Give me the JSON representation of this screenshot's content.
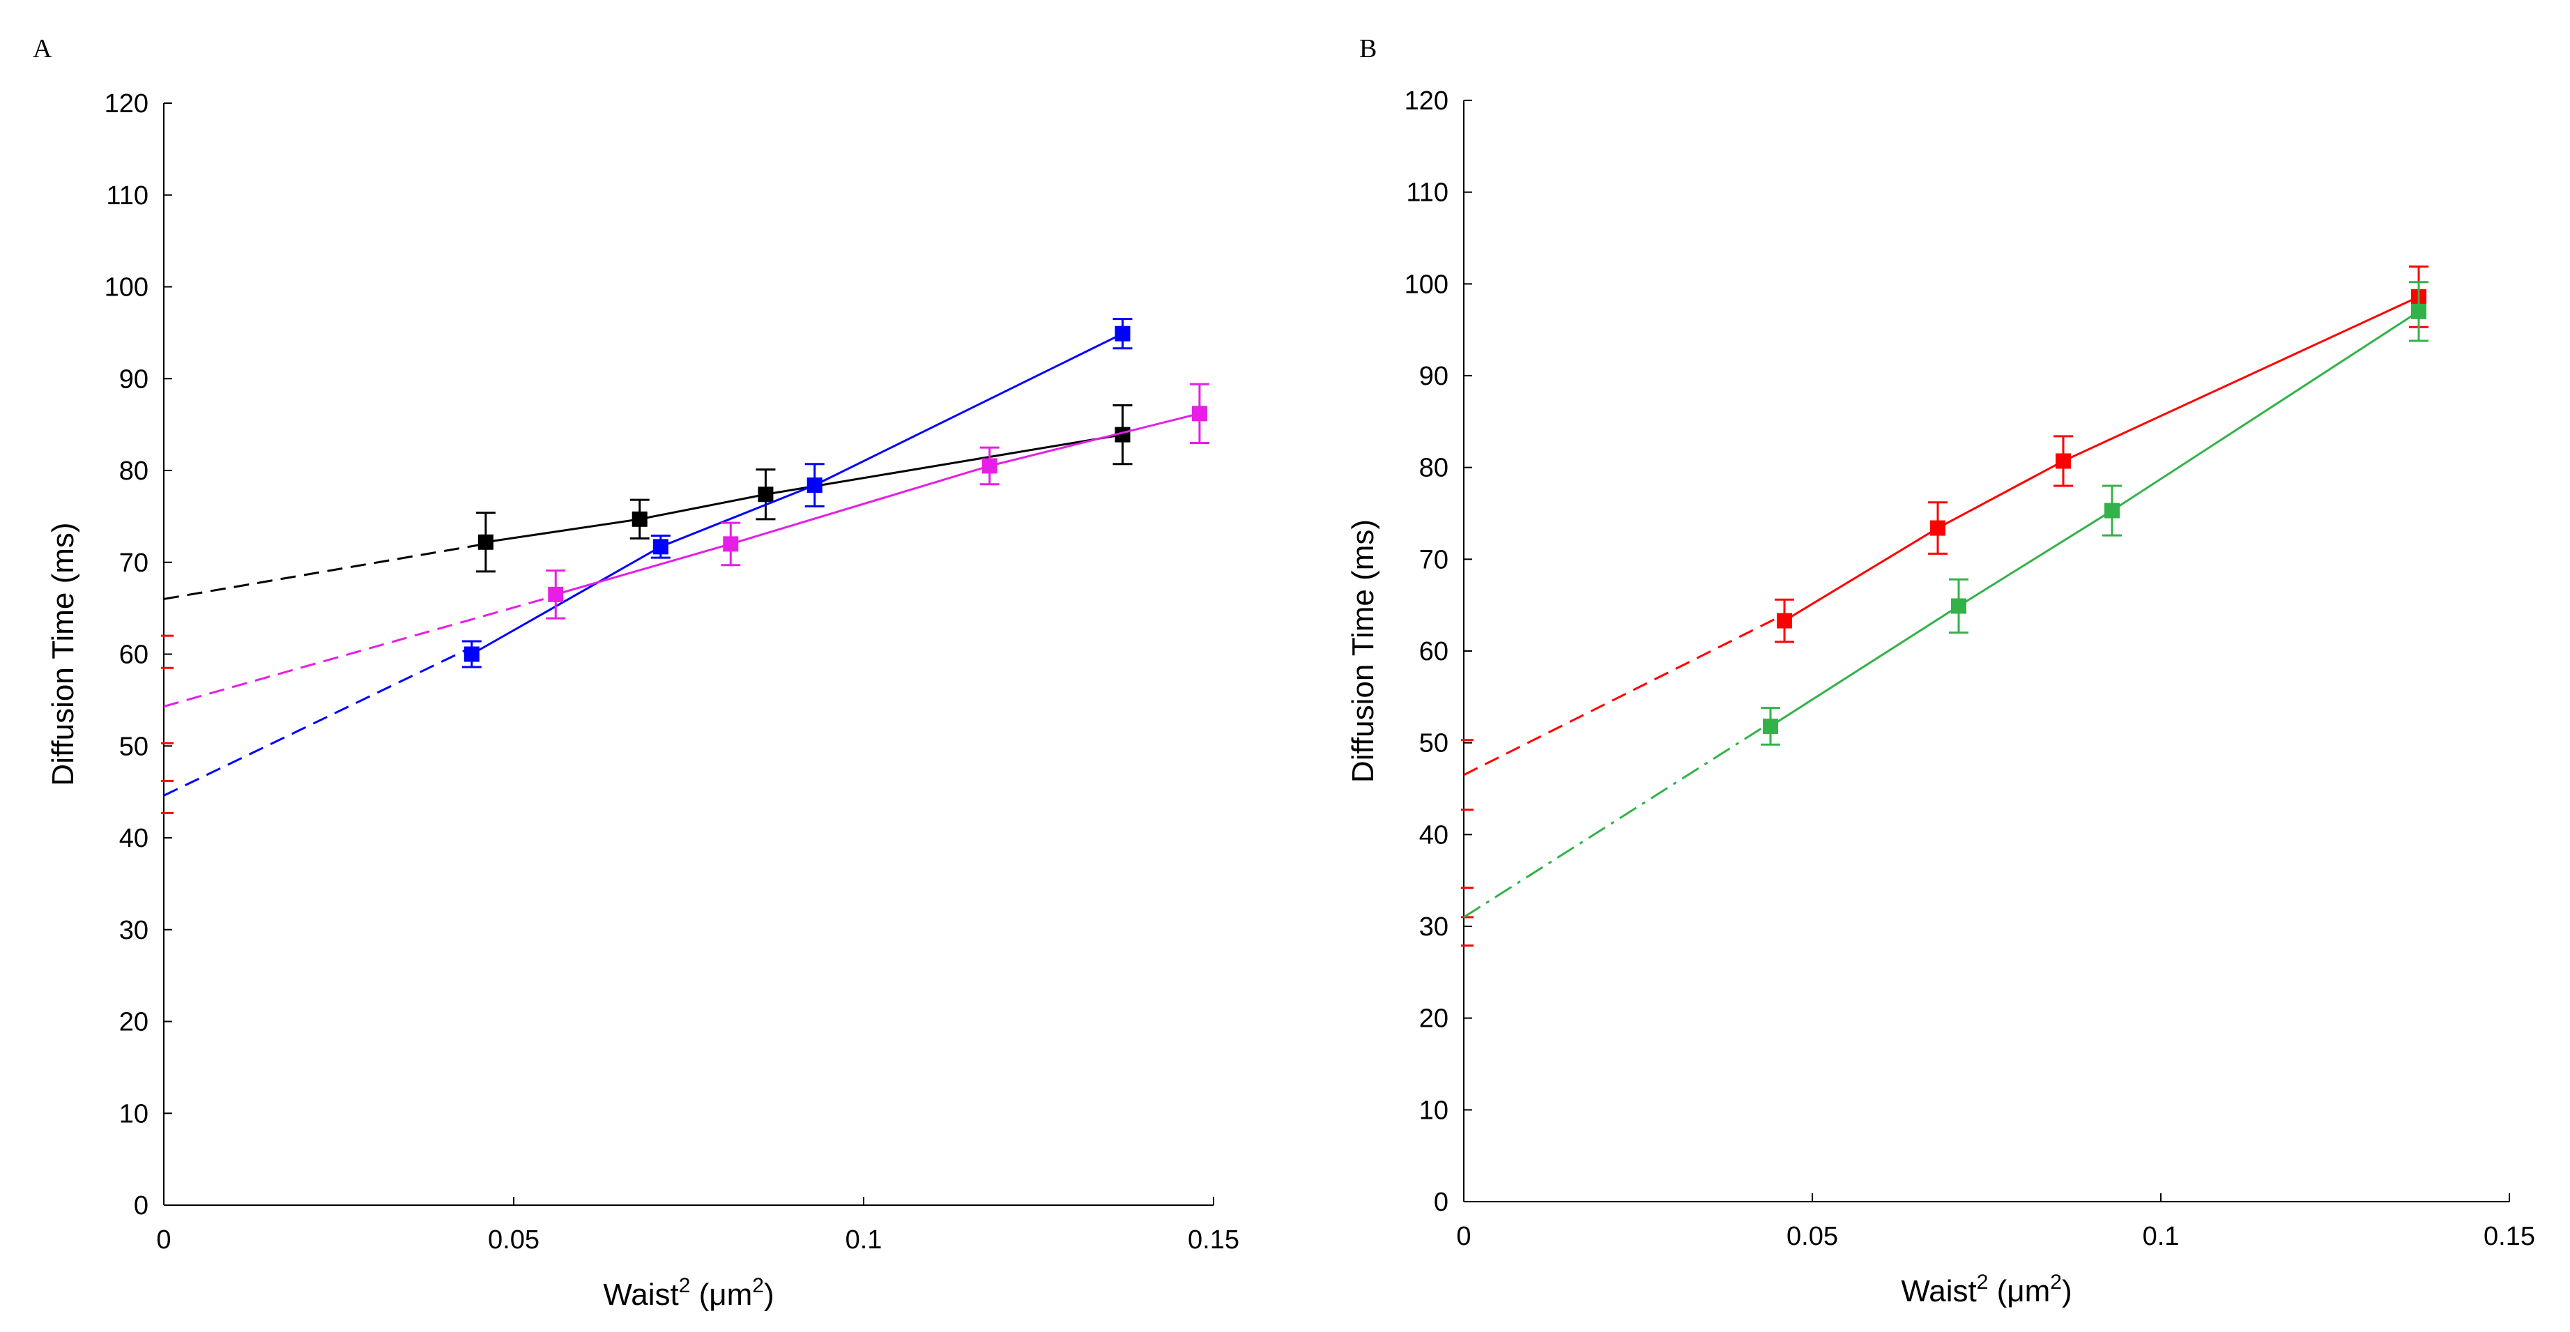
{
  "chart_data": [
    {
      "panel": "A",
      "type": "scatter",
      "title": "",
      "xlabel": "Waist",
      "xlabel_superscript": "2",
      "xlabel_units": "(μm",
      "xlabel_units_superscript": "2",
      "xlabel_close": ")",
      "ylabel": "Diffusion Time (ms)",
      "xlim": [
        0,
        0.15
      ],
      "ylim": [
        0,
        120
      ],
      "x_ticks": [
        0,
        0.05,
        0.1,
        0.15
      ],
      "x_tick_labels": [
        "0",
        "0.05",
        "0.1",
        "0.15"
      ],
      "y_ticks": [
        0,
        10,
        20,
        30,
        40,
        50,
        60,
        70,
        80,
        90,
        100,
        110,
        120
      ],
      "y_tick_labels": [
        "0",
        "10",
        "20",
        "30",
        "40",
        "50",
        "60",
        "70",
        "80",
        "90",
        "100",
        "110",
        "120"
      ],
      "series": [
        {
          "name": "black",
          "color": "#000000",
          "points": [
            [
              0.046,
              72.2
            ],
            [
              0.068,
              74.7
            ],
            [
              0.086,
              77.4
            ],
            [
              0.137,
              83.9
            ]
          ],
          "errors": [
            3.2,
            2.1,
            2.7,
            3.2
          ],
          "fit": {
            "intercept": 66.0,
            "x_start": 0,
            "x_end": 0.137,
            "dash_until": 0.046,
            "dash_style": "dashed"
          }
        },
        {
          "name": "blue",
          "color": "#0000ff",
          "points": [
            [
              0.044,
              60.0
            ],
            [
              0.071,
              71.7
            ],
            [
              0.093,
              78.4
            ],
            [
              0.137,
              94.9
            ]
          ],
          "errors": [
            1.4,
            1.2,
            2.3,
            1.6
          ],
          "fit": {
            "intercept": 44.6,
            "x_start": 0,
            "x_end": 0.137,
            "dash_until": 0.044,
            "dash_style": "dashed"
          }
        },
        {
          "name": "magenta",
          "color": "#e61ee6",
          "points": [
            [
              0.056,
              66.5
            ],
            [
              0.081,
              72.0
            ],
            [
              0.118,
              80.5
            ],
            [
              0.148,
              86.2
            ]
          ],
          "errors": [
            2.6,
            2.3,
            2.0,
            3.2
          ],
          "fit": {
            "intercept": 54.3,
            "x_start": 0,
            "x_end": 0.148,
            "dash_until": 0.056,
            "dash_style": "dashed"
          }
        }
      ],
      "intercept_markers": {
        "color": "#ff0000",
        "values": [
          62.0,
          58.5,
          50.3,
          46.2,
          42.7
        ]
      }
    },
    {
      "panel": "B",
      "type": "scatter",
      "title": "",
      "xlabel": "Waist",
      "xlabel_superscript": "2",
      "xlabel_units": "(μm",
      "xlabel_units_superscript": "2",
      "xlabel_close": ")",
      "ylabel": "Diffusion Time (ms)",
      "xlim": [
        0,
        0.15
      ],
      "ylim": [
        0,
        120
      ],
      "x_ticks": [
        0,
        0.05,
        0.1,
        0.15
      ],
      "x_tick_labels": [
        "0",
        "0.05",
        "0.1",
        "0.15"
      ],
      "y_ticks": [
        0,
        10,
        20,
        30,
        40,
        50,
        60,
        70,
        80,
        90,
        100,
        110,
        120
      ],
      "y_tick_labels": [
        "0",
        "10",
        "20",
        "30",
        "40",
        "50",
        "60",
        "70",
        "80",
        "90",
        "100",
        "110",
        "120"
      ],
      "series": [
        {
          "name": "red",
          "color": "#ff0000",
          "points": [
            [
              0.046,
              63.3
            ],
            [
              0.068,
              73.4
            ],
            [
              0.086,
              80.7
            ],
            [
              0.137,
              98.6
            ]
          ],
          "errors": [
            2.3,
            2.8,
            2.7,
            3.3
          ],
          "fit": {
            "intercept": 46.5,
            "x_start": 0,
            "x_end": 0.137,
            "dash_until": 0.046,
            "dash_style": "dashed"
          }
        },
        {
          "name": "green",
          "color": "#33b24a",
          "points": [
            [
              0.044,
              51.8
            ],
            [
              0.071,
              64.9
            ],
            [
              0.093,
              75.3
            ],
            [
              0.137,
              97.0
            ]
          ],
          "errors": [
            2.0,
            2.9,
            2.7,
            3.2
          ],
          "fit": {
            "intercept": 31.0,
            "x_start": 0,
            "x_end": 0.137,
            "dash_until": 0.044,
            "dash_style": "dashdot"
          }
        }
      ],
      "intercept_markers": {
        "color": "#ff0000",
        "values": [
          50.3,
          42.7,
          34.2,
          31.0,
          27.9
        ]
      }
    }
  ],
  "panel_letters": {
    "a": "A",
    "b": "B"
  }
}
